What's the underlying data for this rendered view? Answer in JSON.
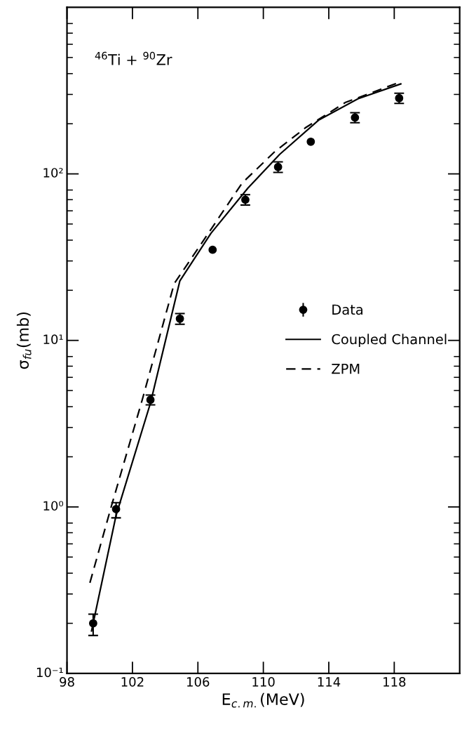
{
  "chart_data": {
    "type": "line",
    "xlabel": "E$_{c.m.}$(MeV)",
    "ylabel": "σ$_{fu}$(mb)",
    "annotations": [
      "$^{46}$Ti + $^{90}$Zr"
    ],
    "log": "y",
    "grid": false,
    "legend": "center right",
    "xlim": [
      98,
      122
    ],
    "xticks": [
      98,
      102,
      106,
      110,
      114,
      118
    ],
    "ylim": [
      0.1,
      1000
    ],
    "yticks": [
      {
        "value": 0.1,
        "label": "10⁻¹"
      },
      {
        "value": 1,
        "label": "10⁰"
      },
      {
        "value": 10,
        "label": "10¹"
      },
      {
        "value": 100,
        "label": "10²"
      }
    ],
    "series": [
      {
        "name": "Data",
        "type": "scatter",
        "marker": "circle",
        "color": "#000000",
        "x": [
          99.6,
          101.0,
          103.1,
          104.9,
          106.9,
          108.9,
          110.9,
          112.9,
          115.6,
          118.3
        ],
        "values": [
          0.2,
          0.97,
          4.4,
          13.5,
          35,
          70,
          110,
          156,
          218,
          285
        ],
        "errors": [
          [
            0.169,
            0.227
          ],
          [
            0.86,
            1.06
          ],
          [
            4.1,
            4.7
          ],
          [
            12.5,
            14.5
          ],
          null,
          [
            65,
            75
          ],
          [
            102,
            118
          ],
          null,
          [
            203,
            233
          ],
          [
            265,
            305
          ]
        ]
      },
      {
        "name": "Coupled Channel",
        "line_style": "solid",
        "color": "#000000",
        "x": [
          99.5,
          101.0,
          103.1,
          104.9,
          106.8,
          109.05,
          111.0,
          113.4,
          115.8,
          118.4
        ],
        "values": [
          0.18,
          0.89,
          4.2,
          22.8,
          44,
          82,
          131,
          211,
          283,
          347
        ]
      },
      {
        "name": "ZPM",
        "line_style": "dashed",
        "color": "#000000",
        "x": [
          99.4,
          100.7,
          102.6,
          104.55,
          106.5,
          108.7,
          110.7,
          112.6,
          115.0,
          118.45
        ],
        "values": [
          0.35,
          1.0,
          4.4,
          21.9,
          42,
          88,
          136,
          190,
          268,
          359
        ]
      }
    ]
  }
}
